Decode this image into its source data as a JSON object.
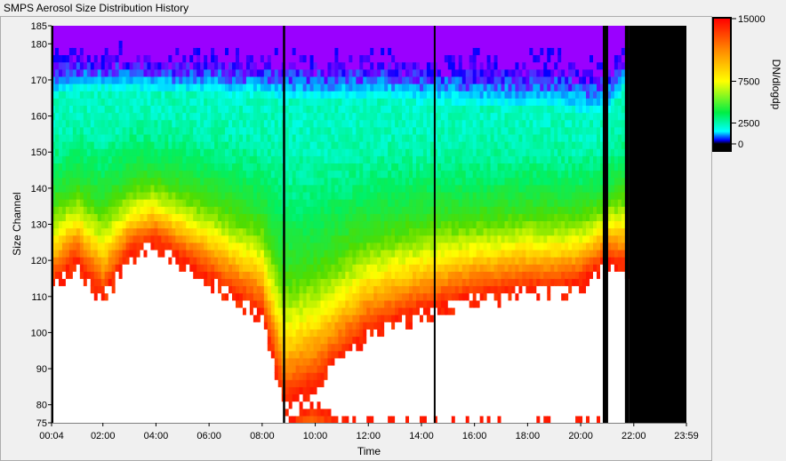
{
  "window": {
    "title": "SMPS Aerosol Size Distribution History"
  },
  "chart_data": {
    "type": "heatmap",
    "title": "SMPS Aerosol Size Distribution History",
    "xlabel": "Time",
    "ylabel": "Size Channel",
    "x_ticks": [
      "00:04",
      "02:00",
      "04:00",
      "06:00",
      "08:00",
      "10:00",
      "12:00",
      "14:00",
      "16:00",
      "18:00",
      "20:00",
      "22:00",
      "23:59"
    ],
    "x_tick_minutes": [
      4,
      120,
      240,
      360,
      480,
      600,
      720,
      840,
      960,
      1080,
      1200,
      1320,
      1439
    ],
    "xlim_minutes": [
      4,
      1439
    ],
    "y_ticks": [
      75,
      80,
      90,
      100,
      110,
      120,
      130,
      140,
      150,
      160,
      170,
      180,
      185
    ],
    "ylim": [
      75,
      185
    ],
    "colorbar": {
      "label": "DN/dlogdp",
      "ticks": [
        0,
        2500,
        7500,
        15000
      ],
      "tick_labels": [
        "0",
        "2500",
        "7500",
        "15000"
      ],
      "range": [
        0,
        15000
      ],
      "over_range_color": "#ffffff",
      "no_data_color": "#000000"
    },
    "gaps_minutes": [
      [
        4,
        7
      ],
      [
        527,
        532
      ],
      [
        868,
        872
      ],
      [
        1250,
        1262
      ],
      [
        1300,
        1309
      ]
    ],
    "no_data_after_minute": 1309,
    "approx_profile": {
      "note_values_are_channels": true,
      "time_minutes": [
        4,
        60,
        120,
        180,
        240,
        300,
        360,
        420,
        480,
        530,
        600,
        660,
        720,
        780,
        840,
        900,
        960,
        1020,
        1080,
        1140,
        1200,
        1260,
        1300
      ],
      "channel_of_peak_concentration": [
        95,
        96,
        90,
        95,
        93,
        96,
        90,
        95,
        95,
        82,
        90,
        95,
        100,
        103,
        106,
        108,
        110,
        111,
        112,
        112,
        115,
        120,
        95
      ],
      "channel_of_15000_contour": [
        113,
        120,
        110,
        122,
        125,
        120,
        115,
        110,
        105,
        80,
        85,
        93,
        100,
        103,
        106,
        108,
        110,
        111,
        112,
        112,
        114,
        120,
        118
      ],
      "channel_of_2500_contour": [
        165,
        167,
        167,
        167,
        166,
        166,
        166,
        165,
        165,
        164,
        164,
        164,
        164,
        164,
        163,
        163,
        162,
        162,
        162,
        162,
        160,
        160,
        168
      ]
    }
  }
}
